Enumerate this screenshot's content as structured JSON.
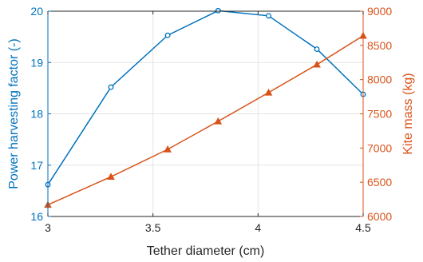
{
  "chart_data": {
    "type": "line",
    "xlabel": "Tether diameter (cm)",
    "ylabel_left": "Power harvesting factor (-)",
    "ylabel_right": "Kite mass (kg)",
    "xlim": [
      3,
      4.5
    ],
    "ylim_left": [
      16,
      20
    ],
    "ylim_right": [
      6000,
      9000
    ],
    "x_ticks": [
      3,
      3.5,
      4,
      4.5
    ],
    "x_tick_labels": [
      "3",
      "3.5",
      "4",
      "4.5"
    ],
    "y_left_ticks": [
      16,
      17,
      18,
      19,
      20
    ],
    "y_left_tick_labels": [
      "16",
      "17",
      "18",
      "19",
      "20"
    ],
    "y_right_ticks": [
      6000,
      6500,
      7000,
      7500,
      8000,
      8500,
      9000
    ],
    "y_right_tick_labels": [
      "6000",
      "6500",
      "7000",
      "7500",
      "8000",
      "8500",
      "9000"
    ],
    "grid": true,
    "colors": {
      "left": "#0072BD",
      "right": "#D95319",
      "grid": "#e4e4e4",
      "axis": "#262626"
    },
    "series": [
      {
        "axis": "left",
        "marker": "circle",
        "x": [
          3.0,
          3.3,
          3.57,
          3.81,
          4.05,
          4.28,
          4.5
        ],
        "values": [
          16.62,
          18.52,
          19.53,
          20.01,
          19.91,
          19.26,
          18.38
        ]
      },
      {
        "axis": "right",
        "marker": "triangle",
        "x": [
          3.0,
          3.3,
          3.57,
          3.81,
          4.05,
          4.28,
          4.5
        ],
        "values": [
          6170,
          6580,
          6980,
          7390,
          7810,
          8220,
          8640
        ]
      }
    ]
  }
}
